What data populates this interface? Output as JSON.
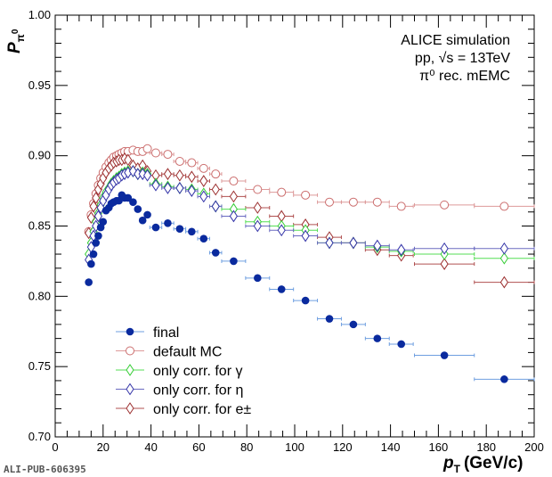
{
  "chart_data": {
    "type": "scatter",
    "xlabel": "p",
    "xlabel_sub": "T",
    "xlabel_unit": "(GeV/c)",
    "ylabel": "P",
    "ylabel_sub": "π",
    "ylabel_sup": "0",
    "xlim": [
      0,
      200
    ],
    "ylim": [
      0.7,
      1.0
    ],
    "xticks": [
      "0",
      "20",
      "40",
      "60",
      "80",
      "100",
      "120",
      "140",
      "160",
      "180",
      "200"
    ],
    "yticks": [
      "0.70",
      "0.75",
      "0.80",
      "0.85",
      "0.90",
      "0.95",
      "1.00"
    ],
    "grid": false,
    "legend_placement": "bottom-left",
    "annotations": [
      "ALICE simulation",
      "pp, √s = 13TeV",
      "π⁰ rec. mEMC"
    ],
    "watermark": "ALI-PUB-606395",
    "x": [
      14,
      15,
      16,
      17,
      18,
      19,
      20,
      21.2,
      22.4,
      23.4,
      24.4,
      25.6,
      26.6,
      27.8,
      29,
      30.4,
      32.5,
      34.5,
      36.5,
      38.5,
      42,
      47,
      52,
      57,
      62,
      67,
      74.5,
      84.5,
      94.5,
      104.5,
      114.5,
      124.5,
      134.5,
      144.5,
      162.5,
      187.5
    ],
    "xerr": [
      0.5,
      0.5,
      0.5,
      0.5,
      0.5,
      0.5,
      0.5,
      0.6,
      0.6,
      0.5,
      0.5,
      0.6,
      0.5,
      0.6,
      0.6,
      0.7,
      1,
      1,
      1,
      1,
      2.5,
      2.5,
      2.5,
      2.5,
      2.5,
      2.5,
      5,
      5,
      5,
      5,
      5,
      5,
      5,
      5,
      12.5,
      12.5
    ],
    "series": [
      {
        "name": "final",
        "marker": "filled-circle",
        "color": "#0a2a9e",
        "errcolor": "#6f9fe0",
        "values": [
          0.81,
          0.823,
          0.83,
          0.838,
          0.843,
          0.849,
          0.853,
          0.861,
          0.863,
          0.866,
          0.867,
          0.868,
          0.868,
          0.872,
          0.87,
          0.87,
          0.867,
          0.862,
          0.854,
          0.858,
          0.849,
          0.852,
          0.848,
          0.846,
          0.841,
          0.831,
          0.825,
          0.813,
          0.805,
          0.797,
          0.784,
          0.78,
          0.77,
          0.766,
          0.758,
          0.741
        ]
      },
      {
        "name": "default MC",
        "marker": "open-circle",
        "color": "#cc6f6f",
        "errcolor": "#dd9a9a",
        "values": [
          0.846,
          0.858,
          0.866,
          0.873,
          0.879,
          0.884,
          0.888,
          0.892,
          0.895,
          0.897,
          0.899,
          0.9,
          0.901,
          0.902,
          0.903,
          0.903,
          0.904,
          0.903,
          0.903,
          0.905,
          0.902,
          0.901,
          0.896,
          0.895,
          0.891,
          0.887,
          0.882,
          0.876,
          0.874,
          0.872,
          0.867,
          0.867,
          0.867,
          0.864,
          0.865,
          0.864
        ]
      },
      {
        "name": "only corr. for γ",
        "marker": "open-diamond",
        "color": "#33cc33",
        "errcolor": "#55dd55",
        "values": [
          0.83,
          0.838,
          0.846,
          0.853,
          0.859,
          0.865,
          0.87,
          0.874,
          0.877,
          0.88,
          0.882,
          0.884,
          0.885,
          0.887,
          0.888,
          0.889,
          0.889,
          0.887,
          0.888,
          0.887,
          0.88,
          0.878,
          0.877,
          0.876,
          0.873,
          0.864,
          0.862,
          0.853,
          0.85,
          0.847,
          0.838,
          0.838,
          0.835,
          0.832,
          0.83,
          0.827
        ]
      },
      {
        "name": "only corr. for η",
        "marker": "open-diamond",
        "color": "#3434a8",
        "errcolor": "#6a6ac0",
        "values": [
          0.826,
          0.835,
          0.843,
          0.85,
          0.857,
          0.863,
          0.868,
          0.872,
          0.876,
          0.879,
          0.881,
          0.883,
          0.884,
          0.886,
          0.887,
          0.888,
          0.889,
          0.887,
          0.887,
          0.886,
          0.879,
          0.877,
          0.877,
          0.875,
          0.871,
          0.864,
          0.857,
          0.85,
          0.847,
          0.843,
          0.838,
          0.838,
          0.836,
          0.833,
          0.834,
          0.834
        ]
      },
      {
        "name": "only corr. for e±",
        "marker": "open-diamond",
        "color": "#9c3030",
        "errcolor": "#b05050",
        "values": [
          0.845,
          0.856,
          0.864,
          0.87,
          0.876,
          0.88,
          0.884,
          0.888,
          0.891,
          0.893,
          0.895,
          0.896,
          0.897,
          0.897,
          0.898,
          0.897,
          0.893,
          0.891,
          0.893,
          0.889,
          0.886,
          0.887,
          0.886,
          0.885,
          0.882,
          0.876,
          0.871,
          0.863,
          0.857,
          0.851,
          0.842,
          0.838,
          0.833,
          0.829,
          0.823,
          0.81
        ]
      }
    ]
  }
}
